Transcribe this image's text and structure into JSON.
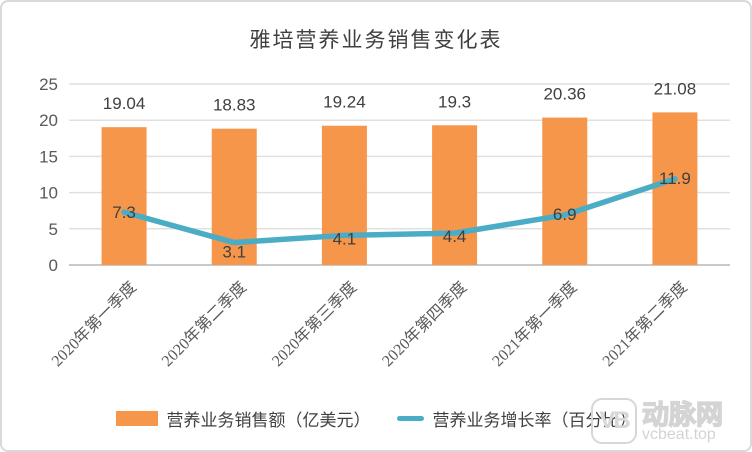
{
  "chart_data": {
    "type": "bar",
    "combo": "bar+line",
    "title": "雅培营养业务销售变化表",
    "categories": [
      "2020年第一季度",
      "2020年第二季度",
      "2020年第三季度",
      "2020年第四季度",
      "2021年第一季度",
      "2021年第二季度"
    ],
    "series": [
      {
        "name": "营养业务销售额（亿美元）",
        "type": "bar",
        "color": "#F5964B",
        "values": [
          19.04,
          18.83,
          19.24,
          19.3,
          20.36,
          21.08
        ]
      },
      {
        "name": "营养业务增长率（百分比）",
        "type": "line",
        "color": "#4BACC6",
        "values": [
          7.3,
          3.1,
          4.1,
          4.4,
          6.9,
          11.9
        ]
      }
    ],
    "y_axis": {
      "min": 0,
      "max": 25,
      "step": 5,
      "tick_labels": [
        "0",
        "5",
        "10",
        "15",
        "20",
        "25"
      ]
    },
    "grid": true,
    "legend_position": "bottom",
    "data_labels_shown": true
  },
  "watermark": {
    "logo_text": "VB",
    "brand": "动脉网",
    "domain": "vcbeat.top"
  },
  "colors": {
    "bar": "#F5964B",
    "line": "#4BACC6",
    "gridline": "#e0e0e0",
    "axis_line": "#c9c9c9",
    "tick_text": "#595959",
    "label_text": "#404040",
    "watermark": "#d4d4d4"
  }
}
